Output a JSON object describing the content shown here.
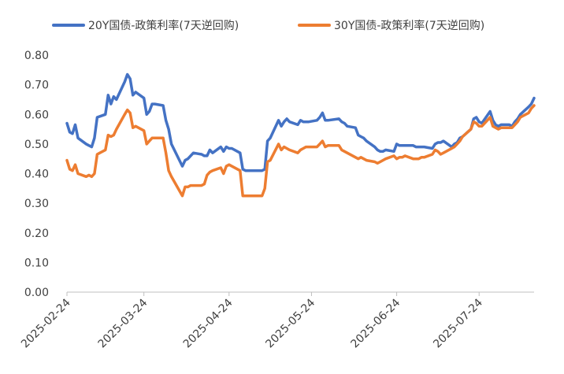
{
  "chart_data": {
    "type": "line",
    "title": "",
    "xlabel": "",
    "ylabel": "",
    "ylim": [
      0,
      0.8
    ],
    "y_ticks": [
      "0.00",
      "0.10",
      "0.20",
      "0.30",
      "0.40",
      "0.50",
      "0.60",
      "0.70",
      "0.80"
    ],
    "x_ticks": [
      "2025-02-24",
      "2025-03-24",
      "2025-04-24",
      "2025-05-24",
      "2025-06-24",
      "2025-07-24"
    ],
    "x_range": [
      "2025-02-24",
      "2025-08-13"
    ],
    "grid": false,
    "legend_position": "top",
    "series": [
      {
        "name": "20Y国债-政策利率(7天逆回购)",
        "color": "#4472C4",
        "points": [
          [
            "2025-02-24",
            0.57
          ],
          [
            "2025-02-25",
            0.54
          ],
          [
            "2025-02-26",
            0.535
          ],
          [
            "2025-02-27",
            0.565
          ],
          [
            "2025-02-28",
            0.52
          ],
          [
            "2025-03-03",
            0.5
          ],
          [
            "2025-03-04",
            0.495
          ],
          [
            "2025-03-05",
            0.49
          ],
          [
            "2025-03-06",
            0.52
          ],
          [
            "2025-03-07",
            0.59
          ],
          [
            "2025-03-10",
            0.6
          ],
          [
            "2025-03-11",
            0.665
          ],
          [
            "2025-03-12",
            0.635
          ],
          [
            "2025-03-13",
            0.66
          ],
          [
            "2025-03-14",
            0.65
          ],
          [
            "2025-03-17",
            0.71
          ],
          [
            "2025-03-18",
            0.735
          ],
          [
            "2025-03-19",
            0.72
          ],
          [
            "2025-03-20",
            0.665
          ],
          [
            "2025-03-21",
            0.675
          ],
          [
            "2025-03-24",
            0.655
          ],
          [
            "2025-03-25",
            0.6
          ],
          [
            "2025-03-26",
            0.61
          ],
          [
            "2025-03-27",
            0.635
          ],
          [
            "2025-03-28",
            0.635
          ],
          [
            "2025-03-31",
            0.63
          ],
          [
            "2025-04-01",
            0.58
          ],
          [
            "2025-04-02",
            0.55
          ],
          [
            "2025-04-03",
            0.5
          ],
          [
            "2025-04-07",
            0.425
          ],
          [
            "2025-04-08",
            0.445
          ],
          [
            "2025-04-09",
            0.45
          ],
          [
            "2025-04-10",
            0.46
          ],
          [
            "2025-04-11",
            0.47
          ],
          [
            "2025-04-14",
            0.465
          ],
          [
            "2025-04-15",
            0.46
          ],
          [
            "2025-04-16",
            0.46
          ],
          [
            "2025-04-17",
            0.48
          ],
          [
            "2025-04-18",
            0.47
          ],
          [
            "2025-04-21",
            0.49
          ],
          [
            "2025-04-22",
            0.475
          ],
          [
            "2025-04-23",
            0.49
          ],
          [
            "2025-04-24",
            0.485
          ],
          [
            "2025-04-25",
            0.485
          ],
          [
            "2025-04-28",
            0.47
          ],
          [
            "2025-04-29",
            0.415
          ],
          [
            "2025-04-30",
            0.41
          ],
          [
            "2025-05-06",
            0.41
          ],
          [
            "2025-05-07",
            0.415
          ],
          [
            "2025-05-08",
            0.51
          ],
          [
            "2025-05-09",
            0.52
          ],
          [
            "2025-05-12",
            0.58
          ],
          [
            "2025-05-13",
            0.56
          ],
          [
            "2025-05-14",
            0.575
          ],
          [
            "2025-05-15",
            0.585
          ],
          [
            "2025-05-16",
            0.575
          ],
          [
            "2025-05-19",
            0.565
          ],
          [
            "2025-05-20",
            0.58
          ],
          [
            "2025-05-21",
            0.575
          ],
          [
            "2025-05-22",
            0.575
          ],
          [
            "2025-05-23",
            0.575
          ],
          [
            "2025-05-26",
            0.58
          ],
          [
            "2025-05-27",
            0.59
          ],
          [
            "2025-05-28",
            0.605
          ],
          [
            "2025-05-29",
            0.58
          ],
          [
            "2025-05-30",
            0.58
          ],
          [
            "2025-06-03",
            0.585
          ],
          [
            "2025-06-04",
            0.575
          ],
          [
            "2025-06-05",
            0.57
          ],
          [
            "2025-06-06",
            0.56
          ],
          [
            "2025-06-09",
            0.555
          ],
          [
            "2025-06-10",
            0.53
          ],
          [
            "2025-06-11",
            0.525
          ],
          [
            "2025-06-12",
            0.52
          ],
          [
            "2025-06-13",
            0.51
          ],
          [
            "2025-06-16",
            0.49
          ],
          [
            "2025-06-17",
            0.48
          ],
          [
            "2025-06-18",
            0.475
          ],
          [
            "2025-06-19",
            0.475
          ],
          [
            "2025-06-20",
            0.48
          ],
          [
            "2025-06-23",
            0.475
          ],
          [
            "2025-06-24",
            0.5
          ],
          [
            "2025-06-25",
            0.495
          ],
          [
            "2025-06-26",
            0.495
          ],
          [
            "2025-06-27",
            0.495
          ],
          [
            "2025-06-30",
            0.495
          ],
          [
            "2025-07-01",
            0.49
          ],
          [
            "2025-07-02",
            0.49
          ],
          [
            "2025-07-03",
            0.49
          ],
          [
            "2025-07-04",
            0.49
          ],
          [
            "2025-07-07",
            0.485
          ],
          [
            "2025-07-08",
            0.5
          ],
          [
            "2025-07-09",
            0.505
          ],
          [
            "2025-07-10",
            0.505
          ],
          [
            "2025-07-11",
            0.51
          ],
          [
            "2025-07-14",
            0.49
          ],
          [
            "2025-07-15",
            0.5
          ],
          [
            "2025-07-16",
            0.505
          ],
          [
            "2025-07-17",
            0.52
          ],
          [
            "2025-07-18",
            0.525
          ],
          [
            "2025-07-21",
            0.55
          ],
          [
            "2025-07-22",
            0.585
          ],
          [
            "2025-07-23",
            0.59
          ],
          [
            "2025-07-24",
            0.575
          ],
          [
            "2025-07-25",
            0.57
          ],
          [
            "2025-07-28",
            0.61
          ],
          [
            "2025-07-29",
            0.58
          ],
          [
            "2025-07-30",
            0.565
          ],
          [
            "2025-07-31",
            0.56
          ],
          [
            "2025-08-01",
            0.565
          ],
          [
            "2025-08-04",
            0.565
          ],
          [
            "2025-08-05",
            0.56
          ],
          [
            "2025-08-06",
            0.575
          ],
          [
            "2025-08-07",
            0.585
          ],
          [
            "2025-08-08",
            0.6
          ],
          [
            "2025-08-11",
            0.625
          ],
          [
            "2025-08-12",
            0.635
          ],
          [
            "2025-08-13",
            0.655
          ]
        ]
      },
      {
        "name": "30Y国债-政策利率(7天逆回购)",
        "color": "#ED7D31",
        "points": [
          [
            "2025-02-24",
            0.445
          ],
          [
            "2025-02-25",
            0.415
          ],
          [
            "2025-02-26",
            0.41
          ],
          [
            "2025-02-27",
            0.43
          ],
          [
            "2025-02-28",
            0.4
          ],
          [
            "2025-03-03",
            0.39
          ],
          [
            "2025-03-04",
            0.395
          ],
          [
            "2025-03-05",
            0.39
          ],
          [
            "2025-03-06",
            0.4
          ],
          [
            "2025-03-07",
            0.465
          ],
          [
            "2025-03-10",
            0.48
          ],
          [
            "2025-03-11",
            0.53
          ],
          [
            "2025-03-12",
            0.525
          ],
          [
            "2025-03-13",
            0.53
          ],
          [
            "2025-03-14",
            0.55
          ],
          [
            "2025-03-17",
            0.6
          ],
          [
            "2025-03-18",
            0.615
          ],
          [
            "2025-03-19",
            0.605
          ],
          [
            "2025-03-20",
            0.555
          ],
          [
            "2025-03-21",
            0.56
          ],
          [
            "2025-03-24",
            0.545
          ],
          [
            "2025-03-25",
            0.5
          ],
          [
            "2025-03-26",
            0.51
          ],
          [
            "2025-03-27",
            0.52
          ],
          [
            "2025-03-28",
            0.52
          ],
          [
            "2025-03-31",
            0.52
          ],
          [
            "2025-04-01",
            0.47
          ],
          [
            "2025-04-02",
            0.41
          ],
          [
            "2025-04-03",
            0.39
          ],
          [
            "2025-04-07",
            0.325
          ],
          [
            "2025-04-08",
            0.355
          ],
          [
            "2025-04-09",
            0.355
          ],
          [
            "2025-04-10",
            0.36
          ],
          [
            "2025-04-11",
            0.36
          ],
          [
            "2025-04-14",
            0.36
          ],
          [
            "2025-04-15",
            0.365
          ],
          [
            "2025-04-16",
            0.395
          ],
          [
            "2025-04-17",
            0.405
          ],
          [
            "2025-04-18",
            0.41
          ],
          [
            "2025-04-21",
            0.42
          ],
          [
            "2025-04-22",
            0.4
          ],
          [
            "2025-04-23",
            0.425
          ],
          [
            "2025-04-24",
            0.43
          ],
          [
            "2025-04-25",
            0.425
          ],
          [
            "2025-04-28",
            0.41
          ],
          [
            "2025-04-29",
            0.325
          ],
          [
            "2025-04-30",
            0.325
          ],
          [
            "2025-05-06",
            0.325
          ],
          [
            "2025-05-07",
            0.35
          ],
          [
            "2025-05-08",
            0.44
          ],
          [
            "2025-05-09",
            0.445
          ],
          [
            "2025-05-12",
            0.5
          ],
          [
            "2025-05-13",
            0.48
          ],
          [
            "2025-05-14",
            0.49
          ],
          [
            "2025-05-15",
            0.485
          ],
          [
            "2025-05-16",
            0.48
          ],
          [
            "2025-05-19",
            0.47
          ],
          [
            "2025-05-20",
            0.48
          ],
          [
            "2025-05-21",
            0.485
          ],
          [
            "2025-05-22",
            0.49
          ],
          [
            "2025-05-23",
            0.49
          ],
          [
            "2025-05-26",
            0.49
          ],
          [
            "2025-05-27",
            0.5
          ],
          [
            "2025-05-28",
            0.51
          ],
          [
            "2025-05-29",
            0.49
          ],
          [
            "2025-05-30",
            0.495
          ],
          [
            "2025-06-03",
            0.495
          ],
          [
            "2025-06-04",
            0.48
          ],
          [
            "2025-06-05",
            0.475
          ],
          [
            "2025-06-06",
            0.47
          ],
          [
            "2025-06-09",
            0.455
          ],
          [
            "2025-06-10",
            0.45
          ],
          [
            "2025-06-11",
            0.455
          ],
          [
            "2025-06-12",
            0.45
          ],
          [
            "2025-06-13",
            0.445
          ],
          [
            "2025-06-16",
            0.44
          ],
          [
            "2025-06-17",
            0.435
          ],
          [
            "2025-06-18",
            0.44
          ],
          [
            "2025-06-19",
            0.445
          ],
          [
            "2025-06-20",
            0.45
          ],
          [
            "2025-06-23",
            0.46
          ],
          [
            "2025-06-24",
            0.45
          ],
          [
            "2025-06-25",
            0.455
          ],
          [
            "2025-06-26",
            0.455
          ],
          [
            "2025-06-27",
            0.46
          ],
          [
            "2025-06-30",
            0.45
          ],
          [
            "2025-07-01",
            0.45
          ],
          [
            "2025-07-02",
            0.45
          ],
          [
            "2025-07-03",
            0.455
          ],
          [
            "2025-07-04",
            0.455
          ],
          [
            "2025-07-07",
            0.465
          ],
          [
            "2025-07-08",
            0.48
          ],
          [
            "2025-07-09",
            0.475
          ],
          [
            "2025-07-10",
            0.465
          ],
          [
            "2025-07-11",
            0.47
          ],
          [
            "2025-07-14",
            0.485
          ],
          [
            "2025-07-15",
            0.49
          ],
          [
            "2025-07-16",
            0.5
          ],
          [
            "2025-07-17",
            0.51
          ],
          [
            "2025-07-18",
            0.525
          ],
          [
            "2025-07-21",
            0.55
          ],
          [
            "2025-07-22",
            0.575
          ],
          [
            "2025-07-23",
            0.57
          ],
          [
            "2025-07-24",
            0.56
          ],
          [
            "2025-07-25",
            0.56
          ],
          [
            "2025-07-28",
            0.59
          ],
          [
            "2025-07-29",
            0.56
          ],
          [
            "2025-07-30",
            0.555
          ],
          [
            "2025-07-31",
            0.55
          ],
          [
            "2025-08-01",
            0.555
          ],
          [
            "2025-08-04",
            0.555
          ],
          [
            "2025-08-05",
            0.555
          ],
          [
            "2025-08-06",
            0.565
          ],
          [
            "2025-08-07",
            0.575
          ],
          [
            "2025-08-08",
            0.59
          ],
          [
            "2025-08-11",
            0.605
          ],
          [
            "2025-08-12",
            0.62
          ],
          [
            "2025-08-13",
            0.63
          ]
        ]
      }
    ]
  }
}
